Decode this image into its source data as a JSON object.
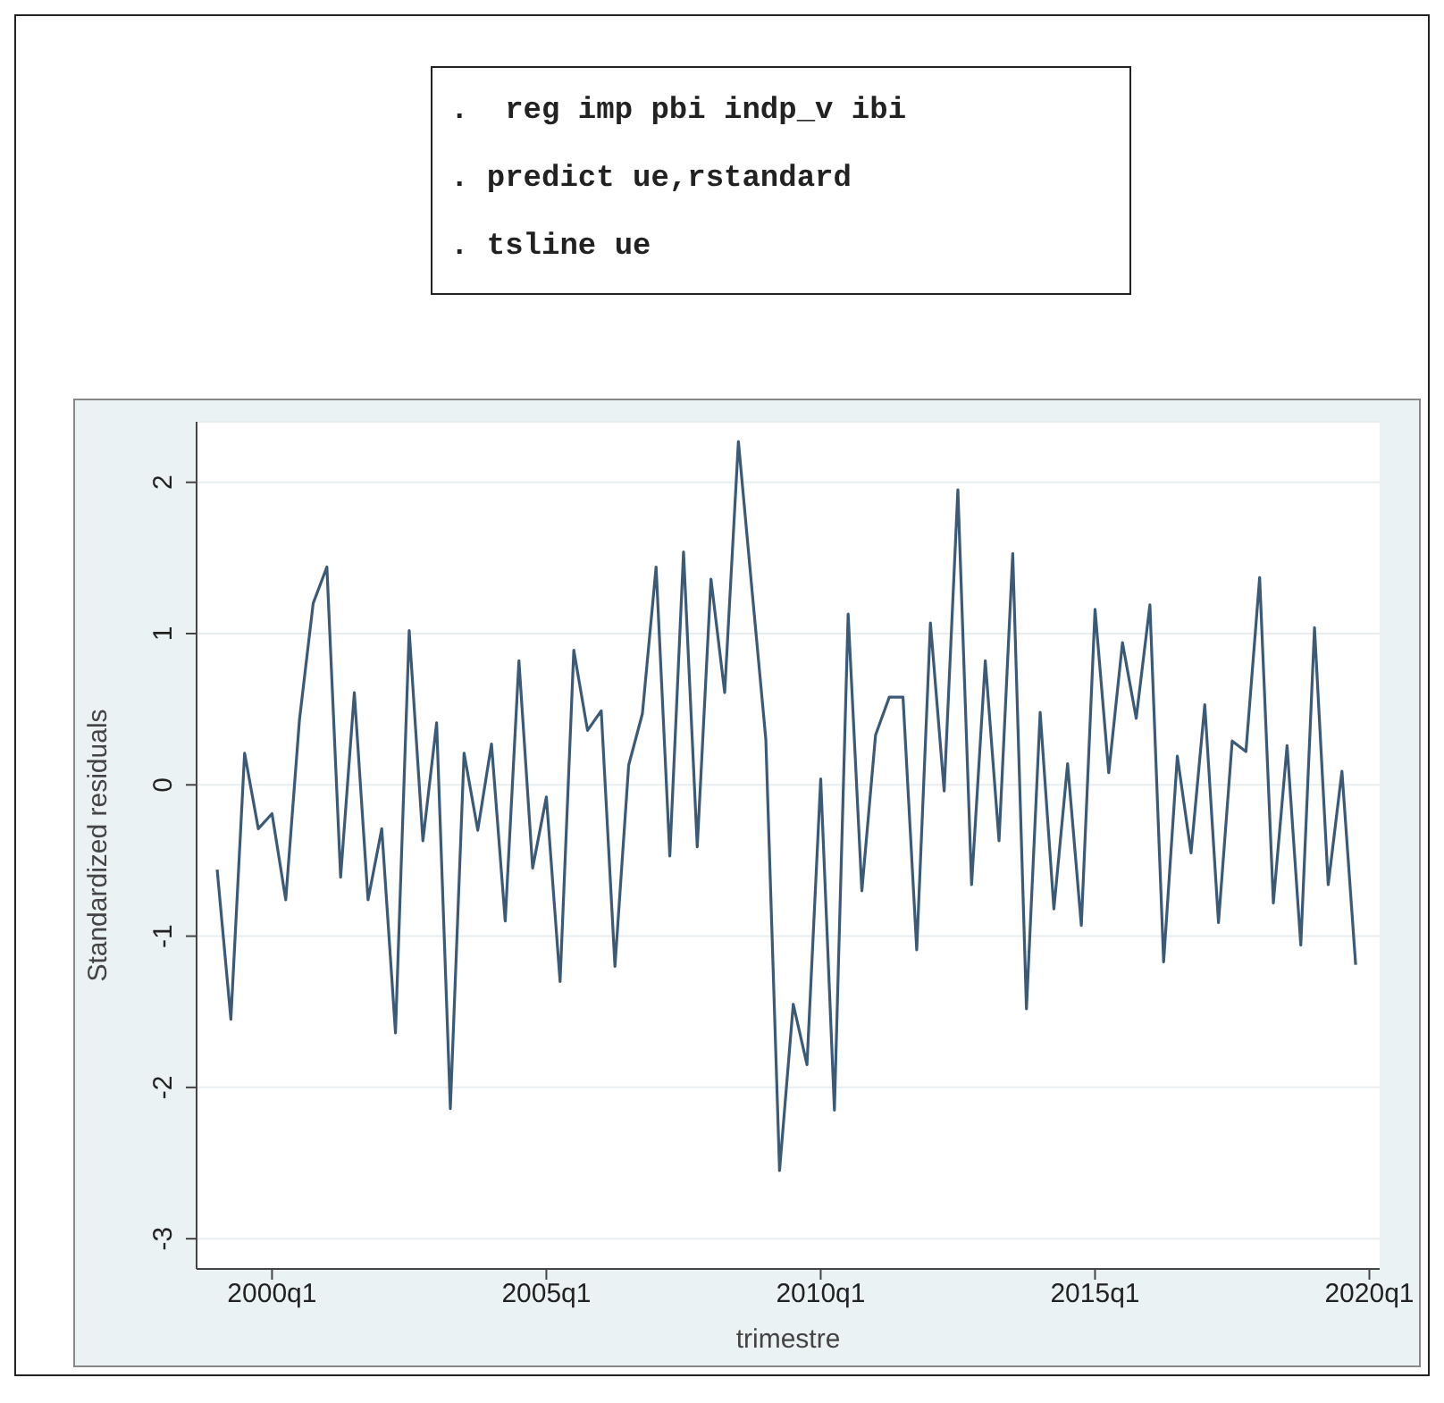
{
  "chart_data": {
    "type": "line",
    "xlabel": "trimestre",
    "ylabel": "Standardized residuals",
    "annotations": [
      ".  reg imp pbi indp_v ibi",
      ". predict ue,rstandard",
      ". tsline ue"
    ],
    "categories": [
      null,
      null,
      null,
      null,
      "2000q1",
      null,
      null,
      null,
      null,
      null,
      null,
      null,
      null,
      null,
      null,
      null,
      null,
      null,
      null,
      null,
      null,
      null,
      null,
      null,
      "2005q1",
      null,
      null,
      null,
      null,
      null,
      null,
      null,
      null,
      null,
      null,
      null,
      null,
      null,
      null,
      null,
      null,
      null,
      null,
      null,
      "2010q1",
      null,
      null,
      null,
      null,
      null,
      null,
      null,
      null,
      null,
      null,
      null,
      null,
      null,
      null,
      null,
      null,
      null,
      null,
      null,
      "2015q1",
      null,
      null,
      null,
      null,
      null,
      null,
      null,
      null,
      null,
      null,
      null,
      null,
      null,
      null,
      null,
      null,
      null,
      null,
      null,
      "2020q1"
    ],
    "series": [
      {
        "color": "#3b5a78",
        "values": [
          -0.56,
          -1.55,
          0.21,
          -0.29,
          -0.19,
          -0.76,
          0.43,
          1.2,
          1.44,
          -0.61,
          0.61,
          -0.76,
          -0.29,
          -1.64,
          1.02,
          -0.37,
          0.41,
          -2.14,
          0.21,
          -0.3,
          0.27,
          -0.9,
          0.82,
          -0.55,
          -0.08,
          -1.3,
          0.89,
          0.36,
          0.49,
          -1.2,
          0.13,
          0.47,
          1.44,
          -0.47,
          1.54,
          -0.41,
          1.36,
          0.61,
          2.27,
          1.28,
          0.3,
          -2.55,
          -1.45,
          -1.85,
          0.04,
          -2.15,
          1.13,
          -0.7,
          0.33,
          0.58,
          0.58,
          -1.09,
          1.07,
          -0.04,
          1.95,
          -0.66,
          0.82,
          -0.37,
          1.53,
          -1.48,
          0.48,
          -0.82,
          0.14,
          -0.93,
          1.16,
          0.08,
          0.94,
          0.44,
          1.19,
          -1.17,
          0.19,
          -0.45,
          0.53,
          -0.91,
          0.29,
          0.22,
          1.37,
          -0.78,
          0.26,
          -1.06,
          1.04,
          -0.66,
          0.09,
          -1.19,
          null
        ]
      }
    ],
    "ylim": [
      -3.2,
      2.4
    ],
    "yticks": [
      -3,
      -2,
      -1,
      0,
      1,
      2
    ],
    "grid": "y",
    "marker": "none",
    "line_style": "solid"
  }
}
